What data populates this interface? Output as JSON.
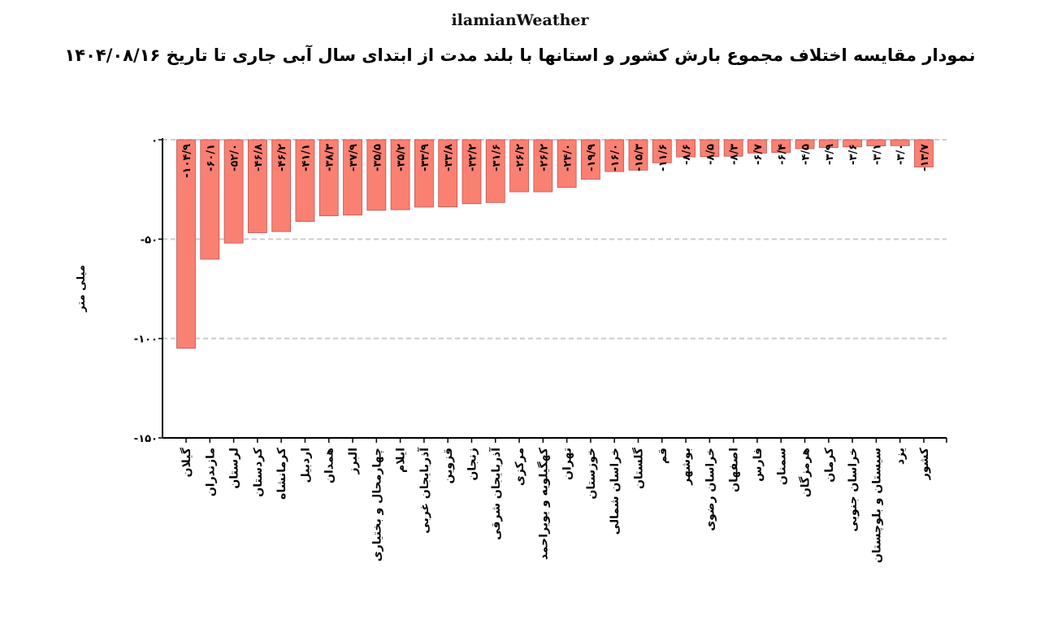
{
  "brand": "ilamianWeather",
  "chart_data": {
    "type": "bar",
    "title": "نمودار مقایسه اختلاف مجموع بارش کشور و استانها با بلند مدت از ابتدای سال آبی جاری تا تاریخ ۱۴۰۴/۰۸/۱۶",
    "ylabel": "میلی متر",
    "xlabel": "",
    "ylim": [
      -150,
      0
    ],
    "yticks": [
      0,
      -50,
      -100,
      -150
    ],
    "grid": true,
    "bar_color": "#fa8072",
    "categories": [
      "گیلان",
      "مازندران",
      "لرستان",
      "کردستان",
      "کرمانشاه",
      "اردبیل",
      "همدان",
      "البرز",
      "چهارمحال و بختیاری",
      "ایلام",
      "آذربایجان غربی",
      "قزوین",
      "زنجان",
      "آذربایجان شرقی",
      "مرکزی",
      "کهگیلویه و بویراحمد",
      "تهران",
      "خوزستان",
      "خراسان شمالی",
      "گلستان",
      "قم",
      "بوشهر",
      "خراسان رضوی",
      "اصفهان",
      "فارس",
      "سمنان",
      "هرمزگان",
      "کرمان",
      "خراسان جنوبی",
      "سیستان و بلوچستان",
      "یزد",
      "کشور"
    ],
    "values": [
      -104.9,
      -60.1,
      -52.0,
      -46.8,
      -46.2,
      -41.1,
      -38.3,
      -37.9,
      -35.5,
      -35.2,
      -33.9,
      -33.8,
      -32.2,
      -31.6,
      -26.2,
      -26.2,
      -24.0,
      -19.9,
      -16.0,
      -15.3,
      -11.6,
      -8.6,
      -8.5,
      -8.3,
      -6.7,
      -6.4,
      -4.5,
      -3.9,
      -3.6,
      -3.1,
      -3.0,
      -13.7
    ]
  }
}
